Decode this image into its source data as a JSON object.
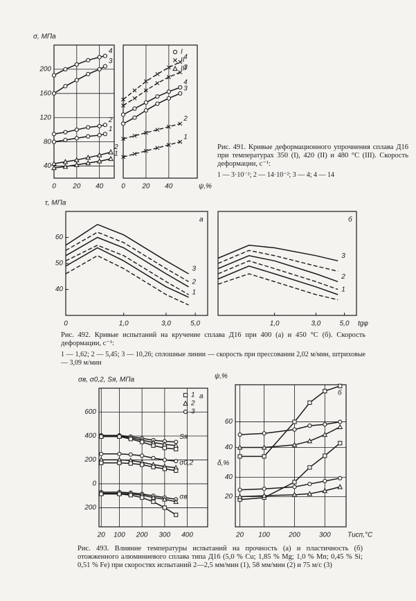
{
  "chart_data": [
    {
      "type": "line",
      "ylabel": "σ, МПа",
      "xlim": [
        0,
        53
      ],
      "ylim": [
        20,
        240
      ],
      "xticks": [
        0,
        20,
        40
      ],
      "yticks": [
        40,
        80,
        120,
        160,
        200
      ],
      "grid": true,
      "color": "#1a1a1a",
      "series": [
        {
          "name": "4",
          "marker": "circle",
          "x": [
            0,
            10,
            20,
            30,
            40,
            45
          ],
          "values": [
            190,
            200,
            208,
            215,
            220,
            222
          ]
        },
        {
          "name": "3",
          "marker": "circle",
          "x": [
            0,
            10,
            20,
            30,
            40,
            45
          ],
          "values": [
            160,
            172,
            182,
            192,
            200,
            205
          ]
        },
        {
          "name": "2",
          "marker": "circle",
          "x": [
            0,
            10,
            20,
            30,
            40,
            45
          ],
          "values": [
            93,
            96,
            100,
            104,
            106,
            108
          ]
        },
        {
          "name": "1",
          "marker": "circle",
          "x": [
            0,
            10,
            20,
            30,
            40,
            45
          ],
          "values": [
            80,
            83,
            86,
            89,
            91,
            93
          ]
        },
        {
          "name": "2",
          "marker": "triangle",
          "x": [
            0,
            10,
            20,
            30,
            40,
            50
          ],
          "values": [
            44,
            47,
            50,
            54,
            58,
            63
          ]
        },
        {
          "name": "1",
          "marker": "triangle",
          "x": [
            0,
            10,
            20,
            30,
            40,
            50
          ],
          "values": [
            37,
            39,
            42,
            45,
            48,
            52
          ]
        }
      ]
    },
    {
      "type": "line",
      "xlabel": "ψ,%",
      "xlim": [
        0,
        65
      ],
      "ylim": [
        20,
        240
      ],
      "xticks": [
        0,
        20,
        40
      ],
      "grid": true,
      "color": "#1a1a1a",
      "legend": [
        {
          "label": "I",
          "marker": "circle"
        },
        {
          "label": "II",
          "marker": "cross"
        },
        {
          "label": "III",
          "marker": "triangle"
        }
      ],
      "series": [
        {
          "name": "4",
          "marker": "cross",
          "dash": true,
          "x": [
            0,
            10,
            20,
            30,
            40,
            50
          ],
          "values": [
            150,
            165,
            180,
            192,
            203,
            212
          ]
        },
        {
          "name": "3",
          "marker": "cross",
          "dash": true,
          "x": [
            0,
            10,
            20,
            30,
            40,
            50
          ],
          "values": [
            140,
            152,
            165,
            177,
            187,
            195
          ]
        },
        {
          "name": "4",
          "marker": "circle",
          "x": [
            0,
            10,
            20,
            30,
            40,
            50
          ],
          "values": [
            125,
            135,
            145,
            155,
            163,
            170
          ]
        },
        {
          "name": "3",
          "marker": "circle",
          "x": [
            0,
            10,
            20,
            30,
            40,
            50
          ],
          "values": [
            110,
            120,
            132,
            143,
            152,
            160
          ]
        },
        {
          "name": "2",
          "marker": "cross",
          "dash": true,
          "x": [
            0,
            10,
            20,
            30,
            40,
            50
          ],
          "values": [
            85,
            90,
            95,
            100,
            105,
            110
          ]
        },
        {
          "name": "1",
          "marker": "cross",
          "dash": true,
          "x": [
            0,
            10,
            20,
            30,
            40,
            50
          ],
          "values": [
            55,
            60,
            65,
            70,
            75,
            80
          ]
        }
      ]
    },
    {
      "type": "line",
      "title": "а",
      "ylabel": "τ, МПа",
      "xscale": "sqrt",
      "xlim": [
        0,
        6
      ],
      "ylim": [
        30,
        70
      ],
      "grid": false,
      "color": "#1a1a1a",
      "xticks": [
        0,
        {
          "value": 1,
          "label": "1,0"
        },
        {
          "value": 3,
          "label": "3,0"
        },
        {
          "value": 5,
          "label": "5,0"
        }
      ],
      "yticks": [
        40,
        50,
        60
      ],
      "series": [
        {
          "name": "3",
          "x": [
            0,
            0.3,
            1,
            3,
            4.5
          ],
          "values": [
            57,
            65,
            61,
            51,
            46
          ]
        },
        {
          "dash": true,
          "x": [
            0,
            0.3,
            1,
            3,
            4.5
          ],
          "values": [
            55,
            62,
            58,
            48,
            43
          ]
        },
        {
          "name": "2",
          "x": [
            0,
            0.3,
            1,
            3,
            4.5
          ],
          "values": [
            53,
            60,
            56,
            46,
            41
          ]
        },
        {
          "dash": true,
          "x": [
            0,
            0.3,
            1,
            3,
            4.5
          ],
          "values": [
            51,
            57,
            53,
            43,
            38
          ]
        },
        {
          "name": "1",
          "x": [
            0,
            0.3,
            1,
            3,
            4.5
          ],
          "values": [
            49,
            56,
            51,
            41,
            37
          ]
        },
        {
          "dash": true,
          "x": [
            0,
            0.3,
            1,
            3,
            4.5
          ],
          "values": [
            46,
            53,
            48,
            38,
            34
          ]
        }
      ]
    },
    {
      "type": "line",
      "title": "б",
      "xlabel": "tgφ",
      "xscale": "sqrt",
      "xlim": [
        0,
        6
      ],
      "ylim": [
        30,
        70
      ],
      "grid": false,
      "color": "#1a1a1a",
      "xticks": [
        {
          "value": 1,
          "label": "1,0"
        },
        {
          "value": 3,
          "label": "3,0"
        },
        {
          "value": 5,
          "label": "5,0"
        }
      ],
      "series": [
        {
          "name": "3",
          "x": [
            0,
            0.3,
            1,
            3,
            4.5
          ],
          "values": [
            52,
            57,
            56,
            53,
            51
          ]
        },
        {
          "dash": true,
          "x": [
            0,
            0.3,
            1,
            3,
            4.5
          ],
          "values": [
            50,
            55,
            53,
            49,
            47
          ]
        },
        {
          "name": "2",
          "x": [
            0,
            0.3,
            1,
            3,
            4.5
          ],
          "values": [
            48,
            53,
            51,
            46,
            43
          ]
        },
        {
          "dash": true,
          "x": [
            0,
            0.3,
            1,
            3,
            4.5
          ],
          "values": [
            46,
            51,
            48,
            43,
            40
          ]
        },
        {
          "name": "1",
          "x": [
            0,
            0.3,
            1,
            3,
            4.5
          ],
          "values": [
            44,
            49,
            46,
            41,
            38
          ]
        },
        {
          "dash": true,
          "x": [
            0,
            0.3,
            1,
            3,
            4.5
          ],
          "values": [
            42,
            46,
            43,
            38,
            36
          ]
        }
      ]
    },
    {
      "type": "line",
      "title": "а",
      "ylabel": "σв, σ0,2, Sя, МПа",
      "xlim": [
        10,
        490
      ],
      "ylim": [
        -360,
        800
      ],
      "y2lim": [
        360,
        -800
      ],
      "grid": true,
      "color": "#1a1a1a",
      "xticks": [
        20,
        100,
        200,
        300,
        400
      ],
      "yticks": [
        0,
        200,
        400,
        600
      ],
      "y2ticks": [
        200
      ],
      "legend": [
        {
          "label": "1",
          "marker": "square"
        },
        {
          "label": "2",
          "marker": "triangle"
        },
        {
          "label": "3",
          "marker": "circle"
        }
      ],
      "series": [
        {
          "name": "Sя",
          "marker": "circle",
          "x": [
            20,
            100,
            150,
            200,
            250,
            300,
            350
          ],
          "values": [
            405,
            405,
            395,
            380,
            365,
            355,
            350
          ]
        },
        {
          "marker": "triangle",
          "x": [
            20,
            100,
            150,
            200,
            250,
            300,
            350
          ],
          "values": [
            400,
            400,
            385,
            365,
            345,
            330,
            320
          ]
        },
        {
          "marker": "square",
          "x": [
            20,
            100,
            150,
            200,
            250,
            300,
            350
          ],
          "values": [
            395,
            395,
            375,
            350,
            320,
            300,
            290
          ]
        },
        {
          "marker": "circle",
          "x": [
            20,
            100,
            150,
            200,
            250,
            300,
            350
          ],
          "values": [
            250,
            250,
            245,
            235,
            215,
            200,
            190
          ]
        },
        {
          "name": "σ0,2",
          "marker": "triangle",
          "x": [
            20,
            100,
            150,
            200,
            250,
            300,
            350
          ],
          "values": [
            200,
            200,
            195,
            180,
            160,
            145,
            135
          ]
        },
        {
          "marker": "square",
          "x": [
            20,
            100,
            150,
            200,
            250,
            300,
            350
          ],
          "values": [
            175,
            175,
            170,
            160,
            140,
            125,
            110
          ]
        },
        {
          "axis": "y2",
          "marker": "circle",
          "x": [
            20,
            100,
            150,
            200,
            250,
            300,
            350
          ],
          "values": [
            70,
            70,
            75,
            85,
            100,
            115,
            130
          ]
        },
        {
          "name": "σв",
          "axis": "y2",
          "marker": "triangle",
          "x": [
            20,
            100,
            150,
            200,
            250,
            300,
            350
          ],
          "values": [
            80,
            80,
            85,
            95,
            115,
            130,
            150
          ]
        },
        {
          "axis": "y2",
          "marker": "square",
          "x": [
            20,
            100,
            150,
            200,
            250,
            300,
            350
          ],
          "values": [
            85,
            85,
            95,
            115,
            150,
            200,
            260
          ]
        }
      ]
    },
    {
      "type": "line",
      "title": "б",
      "ylabel": "ψ,%",
      "y2label": "δ,%",
      "xlabel": "Tисп,°C",
      "xlim": [
        5,
        370
      ],
      "ylim": [
        -22,
        89
      ],
      "y2lim": [
        -11,
        135
      ],
      "grid": true,
      "color": "#1a1a1a",
      "xticks": [
        20,
        100,
        200,
        300
      ],
      "yticks": [
        40,
        60
      ],
      "y2ticks": [
        20,
        40
      ],
      "series": [
        {
          "marker": "square",
          "x": [
            20,
            100,
            200,
            250,
            300,
            350
          ],
          "values": [
            33,
            33,
            60,
            75,
            84,
            88
          ]
        },
        {
          "marker": "triangle",
          "x": [
            20,
            100,
            200,
            250,
            300,
            350
          ],
          "values": [
            40,
            40,
            42,
            45,
            50,
            56
          ]
        },
        {
          "marker": "circle",
          "x": [
            20,
            100,
            200,
            250,
            300,
            350
          ],
          "values": [
            50,
            51,
            54,
            57,
            58,
            60
          ]
        },
        {
          "axis": "y2",
          "marker": "square",
          "x": [
            20,
            100,
            200,
            250,
            300,
            350
          ],
          "values": [
            17,
            19,
            35,
            50,
            62,
            75
          ]
        },
        {
          "axis": "y2",
          "marker": "triangle",
          "x": [
            20,
            100,
            200,
            250,
            300,
            350
          ],
          "values": [
            20,
            21,
            22,
            23,
            26,
            30
          ]
        },
        {
          "axis": "y2",
          "marker": "circle",
          "x": [
            20,
            100,
            200,
            250,
            300,
            350
          ],
          "values": [
            27,
            28,
            30,
            33,
            36,
            39
          ]
        }
      ]
    }
  ],
  "captions": [
    {
      "text": "Рис. 491. Кривые деформационного упрочнения сплава Д16 при температурах 350 (I), 420 (II) и 480 °C (III). Скорость деформации, с⁻¹:",
      "legend": "1 — 3·10⁻²; 2 — 14·10⁻²; 3 — 4; 4 — 14"
    },
    {
      "text": "Рис. 492. Кривые испытаний на кручение сплава Д16 при 400 (а) и 450 °C (б). Скорость деформации, с⁻¹:",
      "legend": "1 — 1,62; 2 — 5,45; 3 — 10,26; сплошные линии — скорость при прессовании 2,02 м/мин, штриховые — 3,09 м/мин"
    },
    {
      "text": "Рис. 493. Влияние температуры испытаний на прочность (а) и пластичность (б) отожженного алюминиевого сплава типа Д16 (5,0 % Cu; 1,85 % Mg; 1,0 % Mn; 0,45 % Si; 0,51 % Fe) при скоростях испытаний 2—2,5 мм/мин (1), 58 мм/мин (2) и 75 м/с (3)"
    }
  ]
}
